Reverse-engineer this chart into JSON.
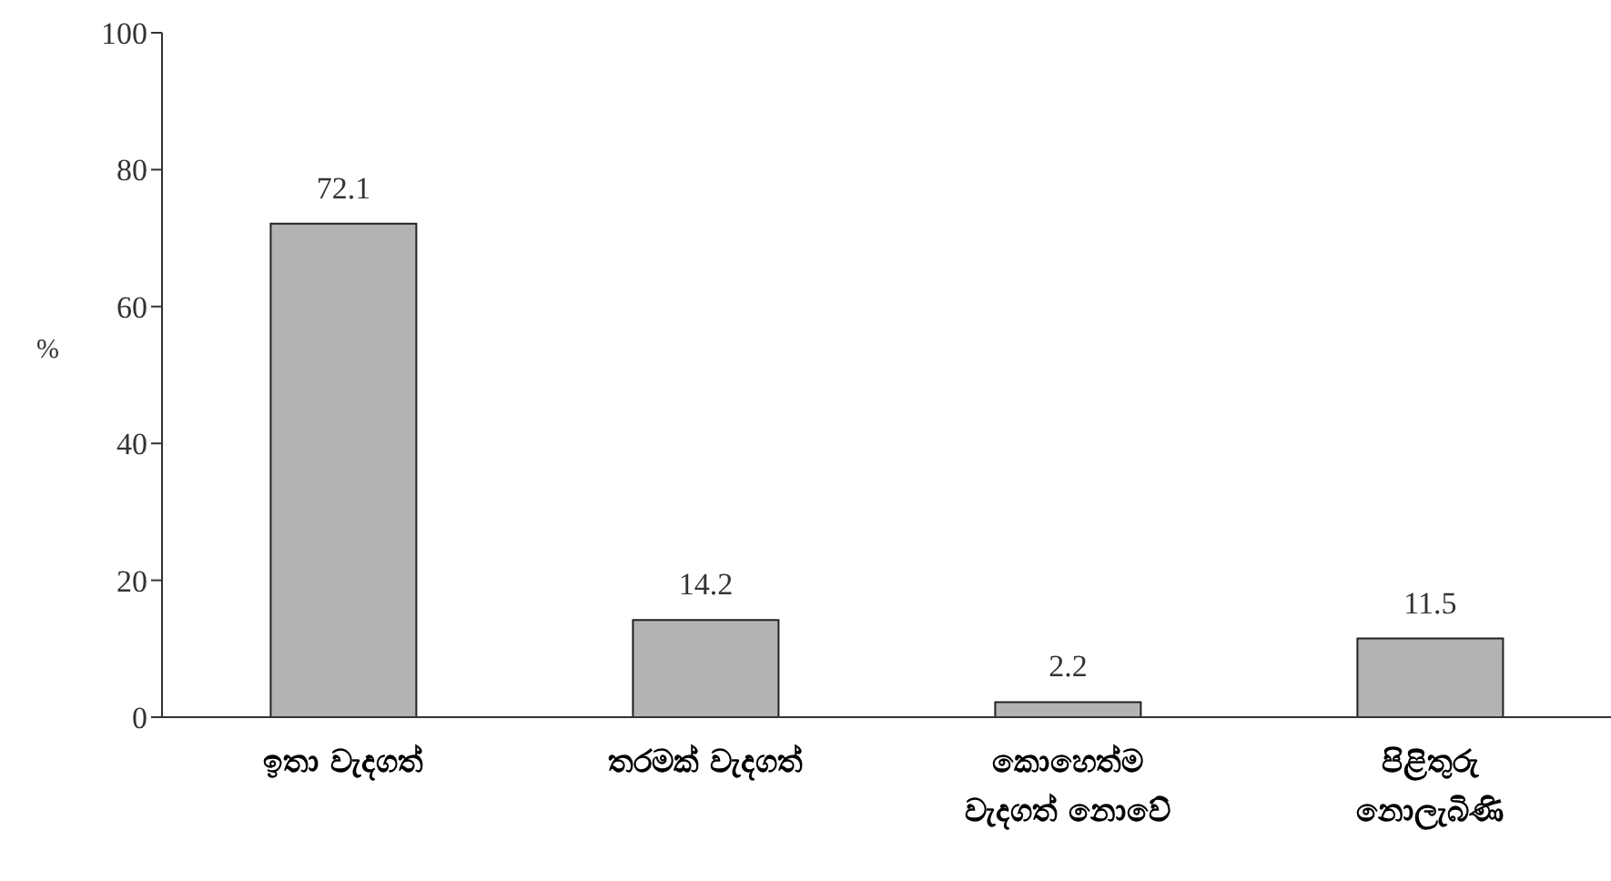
{
  "chart_data": {
    "type": "bar",
    "ylabel": "%",
    "categories": [
      "ඉතා වැදගත්",
      "තරමක් වැදගත්",
      "කොහෙත්ම වැදගත් නොවේ",
      "පිළිතුරු නොලැබිණි"
    ],
    "values": [
      72.1,
      14.2,
      2.2,
      11.5
    ],
    "color": "#b3b3b3",
    "ylim": [
      0,
      100
    ],
    "yticks": [
      0,
      20,
      40,
      60,
      80,
      100
    ],
    "grid": false,
    "data_labels": true
  }
}
